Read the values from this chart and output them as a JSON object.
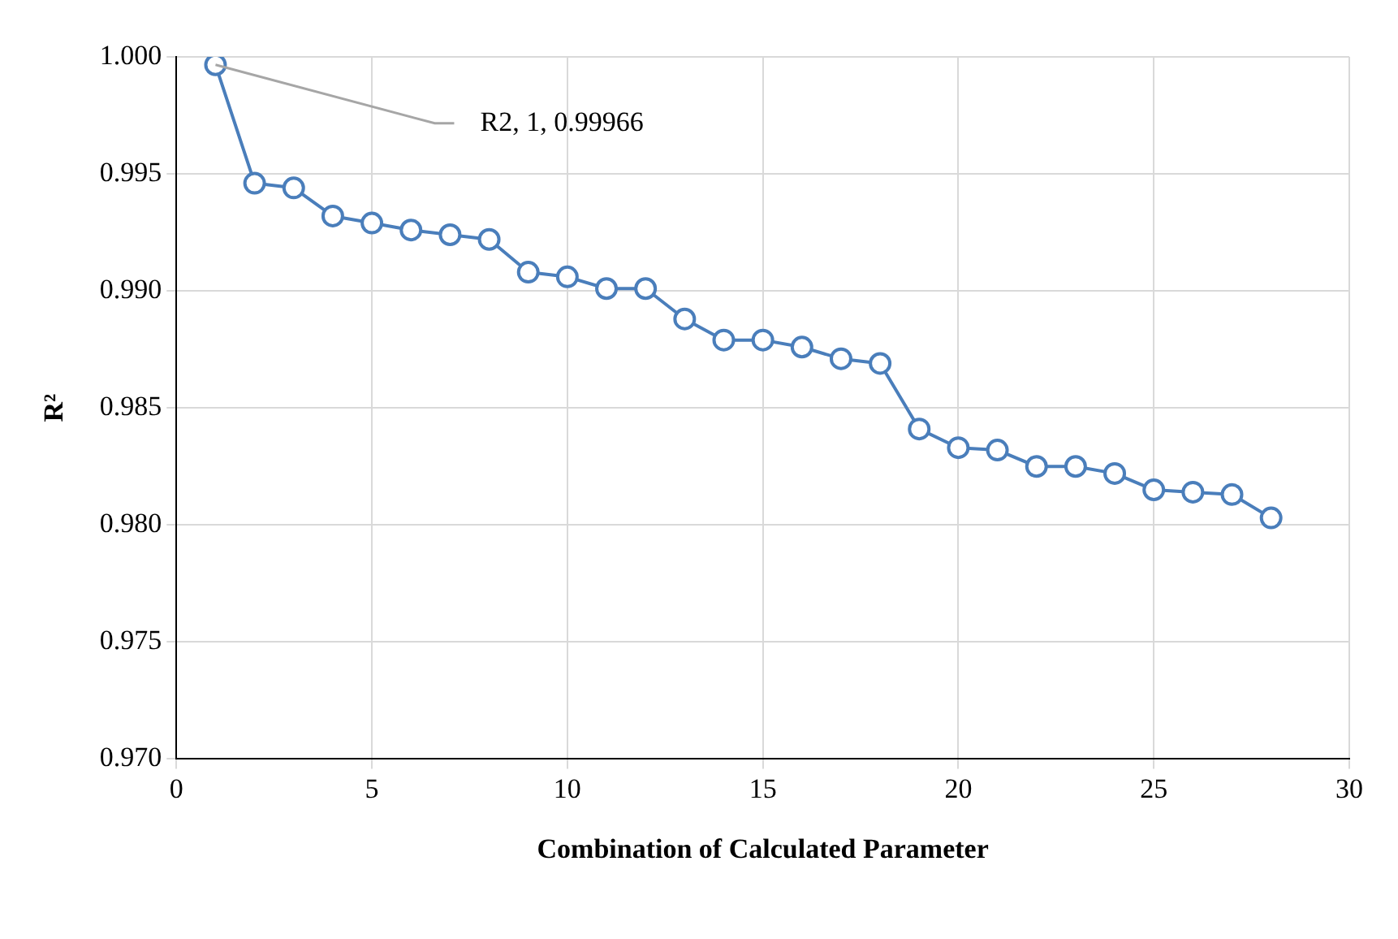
{
  "chart_data": {
    "type": "line",
    "xlabel": "Combination of Calculated Parameter",
    "ylabel": "R²",
    "x": [
      1,
      2,
      3,
      4,
      5,
      6,
      7,
      8,
      9,
      10,
      11,
      12,
      13,
      14,
      15,
      16,
      17,
      18,
      19,
      20,
      21,
      22,
      23,
      24,
      25,
      26,
      27,
      28
    ],
    "series": [
      {
        "color": "#4a7ebb",
        "values": [
          0.99966,
          0.9946,
          0.9944,
          0.9932,
          0.9929,
          0.9926,
          0.9924,
          0.9922,
          0.9908,
          0.9906,
          0.9901,
          0.9901,
          0.9888,
          0.9879,
          0.9879,
          0.9876,
          0.9871,
          0.9869,
          0.9841,
          0.9833,
          0.9832,
          0.9825,
          0.9825,
          0.9822,
          0.9815,
          0.9814,
          0.9813,
          0.9803
        ]
      }
    ],
    "xlim": [
      0,
      30
    ],
    "xticks": [
      0,
      5,
      10,
      15,
      20,
      25,
      30
    ],
    "ylim": [
      0.97,
      1.0
    ],
    "yticks": [
      {
        "value": 0.97,
        "label": "0.970"
      },
      {
        "value": 0.975,
        "label": "0.975"
      },
      {
        "value": 0.98,
        "label": "0.980"
      },
      {
        "value": 0.985,
        "label": "0.985"
      },
      {
        "value": 0.99,
        "label": "0.990"
      },
      {
        "value": 0.995,
        "label": "0.995"
      },
      {
        "value": 1.0,
        "label": "1.000"
      }
    ],
    "annotations": [
      {
        "text": "R2, 1, 0.99966",
        "x": 1,
        "y": 0.99966
      }
    ],
    "grid": true,
    "marker": "circle",
    "line_style": "solid",
    "legend": false
  }
}
